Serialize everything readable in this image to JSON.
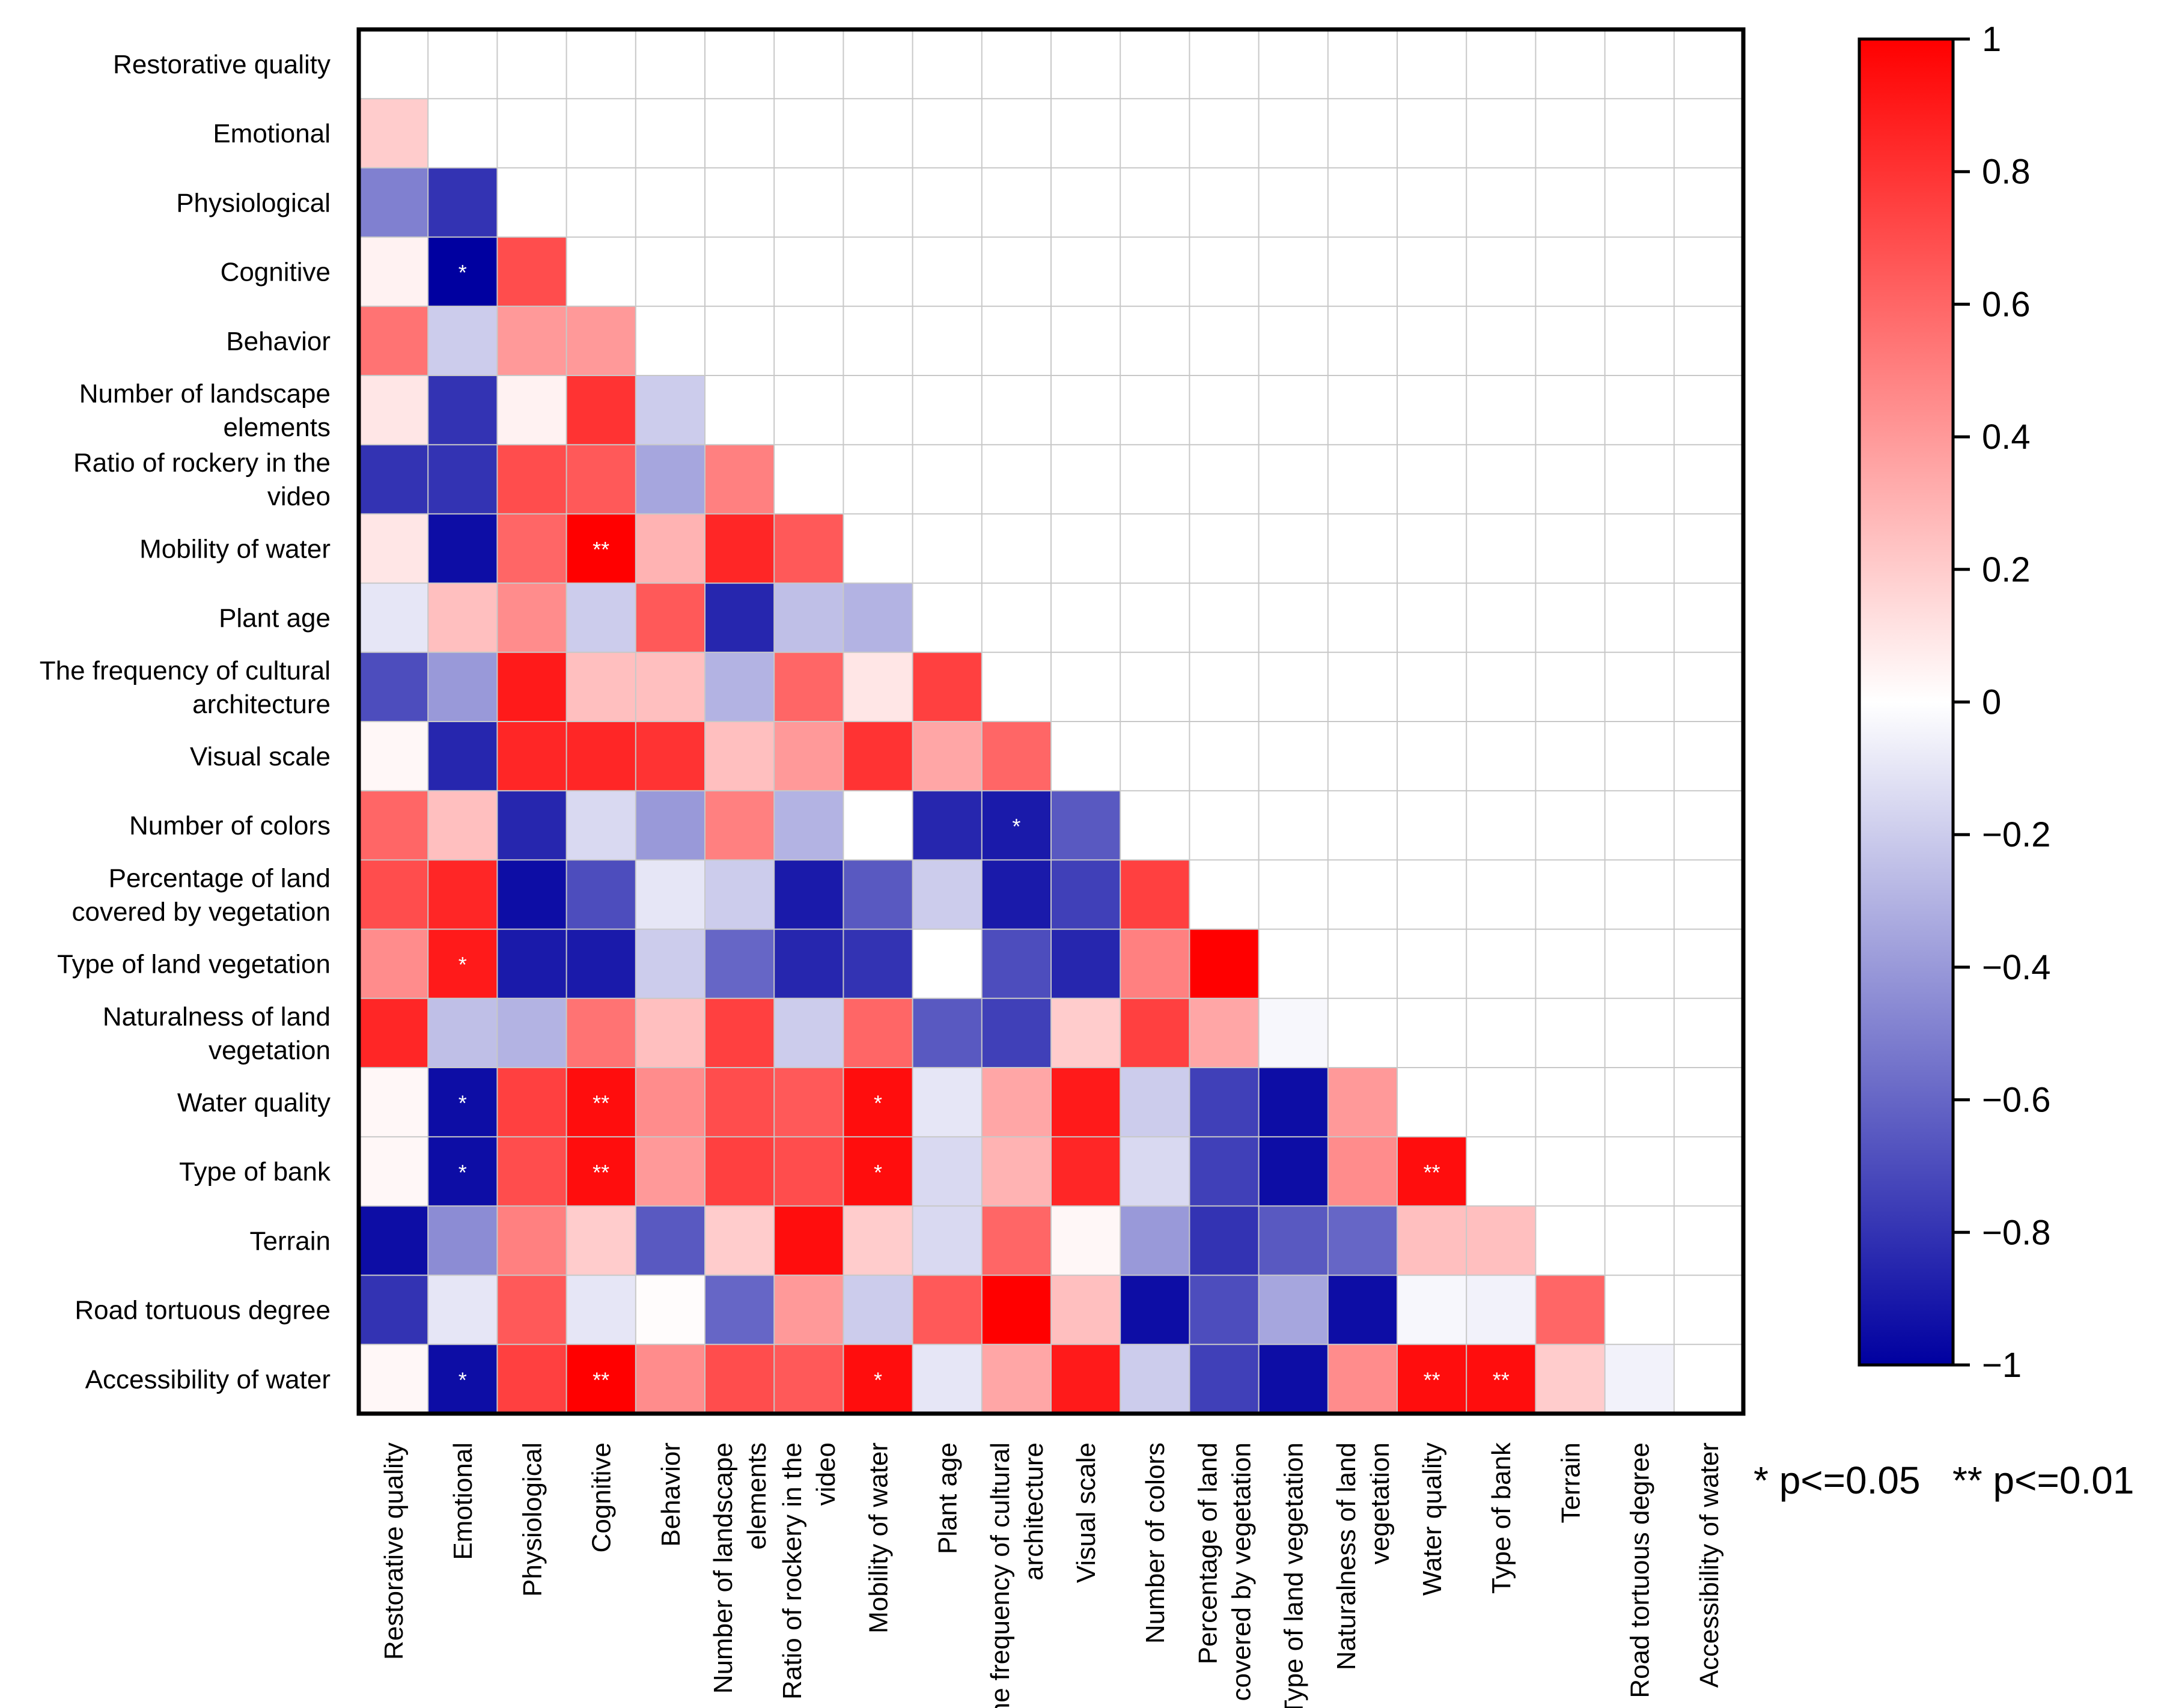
{
  "chart_data": {
    "type": "heatmap",
    "variables": [
      "Restorative quality",
      "Emotional",
      "Physiological",
      "Cognitive",
      "Behavior",
      "Number of landscape elements",
      "Ratio of rockery in the video",
      "Mobility of water",
      "Plant age",
      "The frequency of cultural architecture",
      "Visual scale",
      "Number of colors",
      "Percentage of land covered by vegetation",
      "Type of land vegetation",
      "Naturalness of land vegetation",
      "Water quality",
      "Type of bank",
      "Terrain",
      "Road tortuous degree",
      "Accessibility of water"
    ],
    "row_labels": [
      [
        "Restorative quality"
      ],
      [
        "Emotional"
      ],
      [
        "Physiological"
      ],
      [
        "Cognitive"
      ],
      [
        "Behavior"
      ],
      [
        "Number of landscape",
        "elements"
      ],
      [
        "Ratio of rockery in the",
        "video"
      ],
      [
        "Mobility of water"
      ],
      [
        "Plant age"
      ],
      [
        "The frequency of cultural",
        "architecture"
      ],
      [
        "Visual scale"
      ],
      [
        "Number of colors"
      ],
      [
        "Percentage of land",
        "covered by vegetation"
      ],
      [
        "Type of land vegetation"
      ],
      [
        "Naturalness of land",
        "vegetation"
      ],
      [
        "Water quality"
      ],
      [
        "Type of bank"
      ],
      [
        "Terrain"
      ],
      [
        "Road tortuous degree"
      ],
      [
        "Accessibility of water"
      ]
    ],
    "col_labels": [
      [
        "Restorative quality"
      ],
      [
        "Emotional"
      ],
      [
        "Physiological"
      ],
      [
        "Cognitive"
      ],
      [
        "Behavior"
      ],
      [
        "Number of landscape",
        "elements"
      ],
      [
        "Ratio of rockery in the",
        "video"
      ],
      [
        "Mobility of water"
      ],
      [
        "Plant age"
      ],
      [
        "The frequency of cultural",
        "architecture"
      ],
      [
        "Visual scale"
      ],
      [
        "Number of colors"
      ],
      [
        "Percentage of land",
        "covered by vegetation"
      ],
      [
        "Type of land vegetation"
      ],
      [
        "Naturalness of land",
        "vegetation"
      ],
      [
        "Water quality"
      ],
      [
        "Type of bank"
      ],
      [
        "Terrain"
      ],
      [
        "Road tortuous degree"
      ],
      [
        "Accessibility of water"
      ]
    ],
    "lower_triangle_values": [
      [],
      [
        0.2
      ],
      [
        -0.5,
        -0.8
      ],
      [
        0.05,
        -1.0,
        0.7
      ],
      [
        0.55,
        -0.2,
        0.4,
        0.4
      ],
      [
        0.1,
        -0.8,
        0.05,
        0.8,
        -0.2
      ],
      [
        -0.8,
        -0.8,
        0.7,
        0.65,
        -0.35,
        0.5
      ],
      [
        0.1,
        -0.95,
        0.6,
        1.0,
        0.3,
        0.85,
        0.65
      ],
      [
        -0.1,
        0.25,
        0.45,
        -0.2,
        0.65,
        -0.85,
        -0.25,
        -0.3
      ],
      [
        -0.7,
        -0.4,
        0.9,
        0.25,
        0.25,
        -0.3,
        0.6,
        0.1,
        0.75
      ],
      [
        0.03,
        -0.85,
        0.85,
        0.85,
        0.8,
        0.25,
        0.4,
        0.8,
        0.35,
        0.6
      ],
      [
        0.6,
        0.25,
        -0.85,
        -0.15,
        -0.4,
        0.5,
        -0.3,
        0.0,
        -0.85,
        -0.9,
        -0.65
      ],
      [
        0.7,
        0.85,
        -0.95,
        -0.7,
        -0.1,
        -0.2,
        -0.9,
        -0.65,
        -0.2,
        -0.9,
        -0.75,
        0.75
      ],
      [
        0.45,
        0.9,
        -0.9,
        -0.9,
        -0.2,
        -0.6,
        -0.85,
        -0.8,
        0.0,
        -0.7,
        -0.85,
        0.5,
        1.0
      ],
      [
        0.85,
        -0.25,
        -0.3,
        0.55,
        0.25,
        0.75,
        -0.2,
        0.6,
        -0.65,
        -0.75,
        0.2,
        0.75,
        0.35,
        -0.03
      ],
      [
        0.03,
        -0.95,
        0.75,
        0.95,
        0.45,
        0.7,
        0.65,
        0.95,
        -0.1,
        0.35,
        0.9,
        -0.2,
        -0.75,
        -0.95,
        0.4
      ],
      [
        0.03,
        -0.95,
        0.7,
        0.95,
        0.4,
        0.75,
        0.7,
        0.95,
        -0.15,
        0.3,
        0.85,
        -0.15,
        -0.75,
        -0.95,
        0.45,
        0.95
      ],
      [
        -0.95,
        -0.45,
        0.5,
        0.2,
        -0.65,
        0.2,
        0.95,
        0.2,
        -0.15,
        0.6,
        0.03,
        -0.4,
        -0.8,
        -0.65,
        -0.6,
        0.25,
        0.25
      ],
      [
        -0.8,
        -0.1,
        0.65,
        -0.1,
        0.01,
        -0.6,
        0.4,
        -0.2,
        0.65,
        1.0,
        0.25,
        -0.95,
        -0.7,
        -0.35,
        -0.95,
        -0.03,
        -0.05,
        0.6
      ],
      [
        0.03,
        -0.95,
        0.75,
        1.0,
        0.45,
        0.7,
        0.65,
        0.95,
        -0.1,
        0.35,
        0.9,
        -0.2,
        -0.75,
        -0.95,
        0.45,
        0.95,
        0.95,
        0.2,
        -0.05
      ]
    ],
    "significance": [
      {
        "row": 3,
        "col": 1,
        "mark": "*"
      },
      {
        "row": 7,
        "col": 3,
        "mark": "**"
      },
      {
        "row": 11,
        "col": 9,
        "mark": "*"
      },
      {
        "row": 13,
        "col": 1,
        "mark": "*"
      },
      {
        "row": 15,
        "col": 1,
        "mark": "*"
      },
      {
        "row": 15,
        "col": 3,
        "mark": "**"
      },
      {
        "row": 15,
        "col": 7,
        "mark": "*"
      },
      {
        "row": 16,
        "col": 1,
        "mark": "*"
      },
      {
        "row": 16,
        "col": 3,
        "mark": "**"
      },
      {
        "row": 16,
        "col": 7,
        "mark": "*"
      },
      {
        "row": 16,
        "col": 15,
        "mark": "**"
      },
      {
        "row": 19,
        "col": 1,
        "mark": "*"
      },
      {
        "row": 19,
        "col": 3,
        "mark": "**"
      },
      {
        "row": 19,
        "col": 7,
        "mark": "*"
      },
      {
        "row": 19,
        "col": 15,
        "mark": "**"
      },
      {
        "row": 19,
        "col": 16,
        "mark": "**"
      }
    ],
    "colorbar": {
      "range": [
        -1,
        1
      ],
      "ticks": [
        "1",
        "0.8",
        "0.6",
        "0.4",
        "0.2",
        "0",
        "−0.2",
        "−0.4",
        "−0.6",
        "−0.8",
        "−1"
      ],
      "tick_values": [
        1,
        0.8,
        0.6,
        0.4,
        0.2,
        0,
        -0.2,
        -0.4,
        -0.6,
        -0.8,
        -1
      ],
      "colors": {
        "negative": "#0000a0",
        "zero": "#ffffff",
        "positive": "#ff0000"
      }
    },
    "legend_note": "* p<=0.05   ** p<=0.01"
  }
}
